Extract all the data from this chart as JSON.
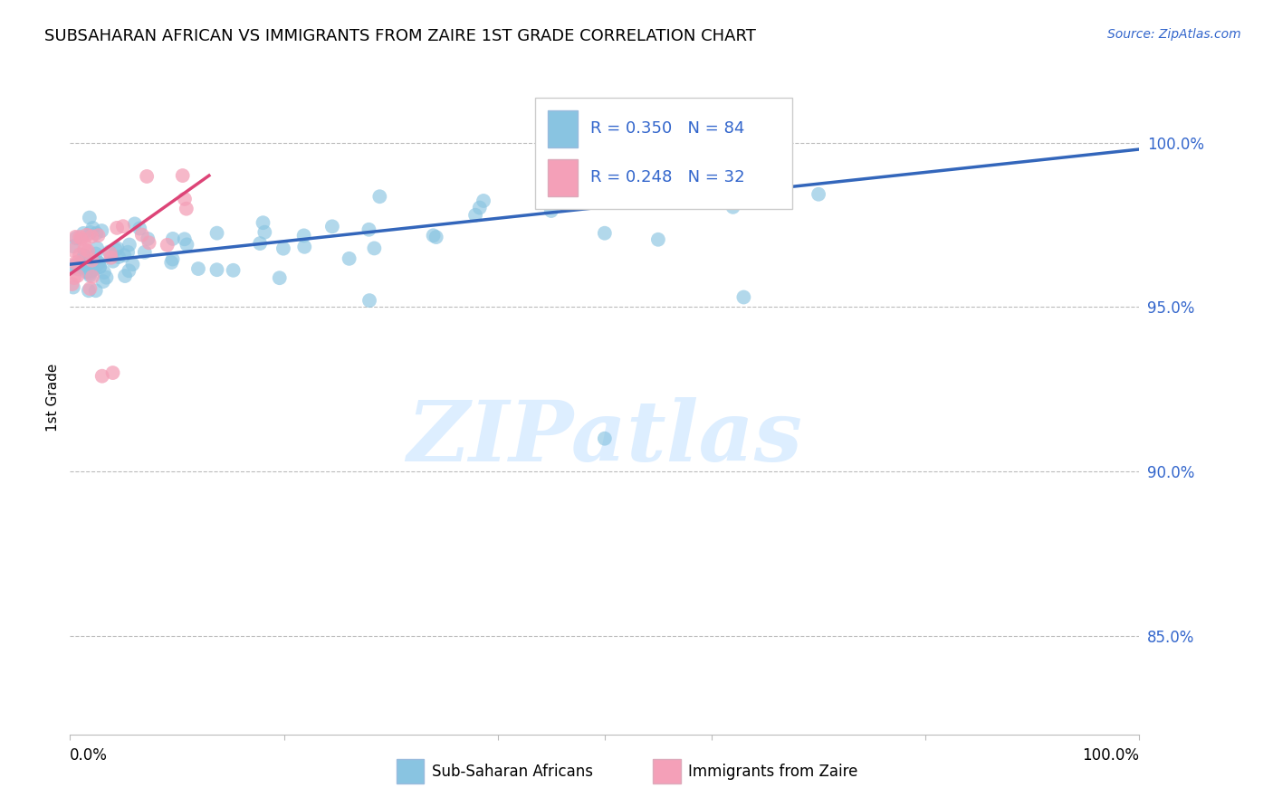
{
  "title": "SUBSAHARAN AFRICAN VS IMMIGRANTS FROM ZAIRE 1ST GRADE CORRELATION CHART",
  "source": "Source: ZipAtlas.com",
  "ylabel": "1st Grade",
  "ytick_positions": [
    1.0,
    0.95,
    0.9,
    0.85
  ],
  "ytick_labels": [
    "100.0%",
    "95.0%",
    "90.0%",
    "85.0%"
  ],
  "xlim": [
    0.0,
    1.0
  ],
  "ylim": [
    0.82,
    1.025
  ],
  "legend_blue_r": "R = 0.350",
  "legend_blue_n": "N = 84",
  "legend_pink_r": "R = 0.248",
  "legend_pink_n": "N = 32",
  "legend_blue_label": "Sub-Saharan Africans",
  "legend_pink_label": "Immigrants from Zaire",
  "blue_color": "#89c4e1",
  "pink_color": "#f4a0b8",
  "blue_line_color": "#3366bb",
  "pink_line_color": "#dd4477",
  "watermark_color": "#ddeeff",
  "blue_trendline_x": [
    0.0,
    1.0
  ],
  "blue_trendline_y": [
    0.963,
    0.998
  ],
  "pink_trendline_x": [
    0.0,
    0.13
  ],
  "pink_trendline_y": [
    0.96,
    0.99
  ]
}
